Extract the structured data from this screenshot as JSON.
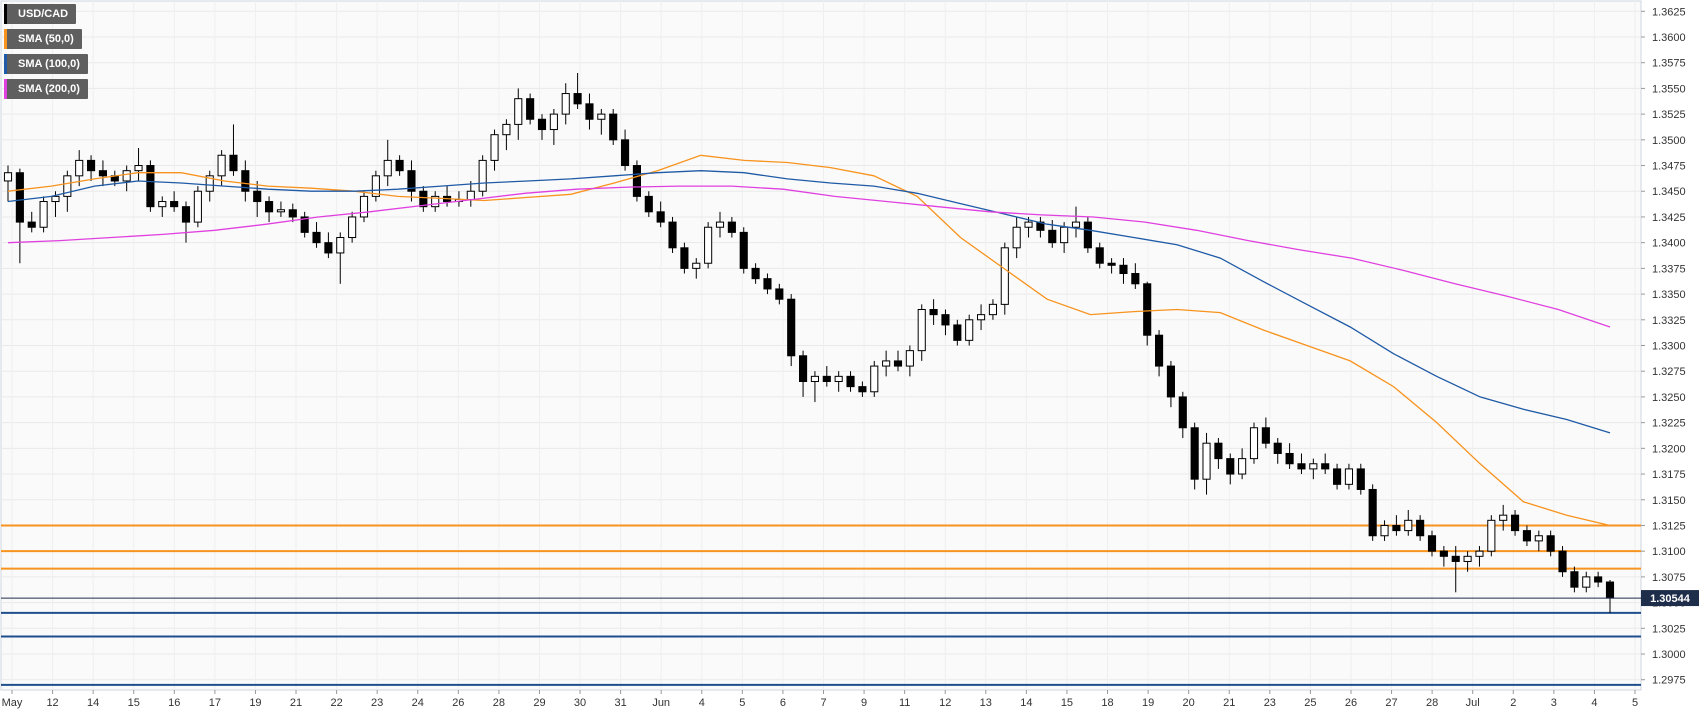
{
  "legend": [
    {
      "label": "USD/CAD",
      "color": "#000000"
    },
    {
      "label": "SMA (50,0)",
      "color": "#f7931e"
    },
    {
      "label": "SMA (100,0)",
      "color": "#1f5aa6"
    },
    {
      "label": "SMA (200,0)",
      "color": "#e040e0"
    }
  ],
  "chart_data": {
    "type": "candlestick",
    "symbol": "USD/CAD",
    "ylim": [
      1.2965,
      1.3635
    ],
    "y_ticks": [
      "1.2975",
      "1.3000",
      "1.3025",
      "1.3050",
      "1.3075",
      "1.3100",
      "1.3125",
      "1.3150",
      "1.3175",
      "1.3200",
      "1.3225",
      "1.3250",
      "1.3275",
      "1.3300",
      "1.3325",
      "1.3350",
      "1.3375",
      "1.3400",
      "1.3425",
      "1.3450",
      "1.3475",
      "1.3500",
      "1.3525",
      "1.3550",
      "1.3575",
      "1.3600",
      "1.3625"
    ],
    "x_ticks": [
      "May",
      "12",
      "14",
      "15",
      "16",
      "17",
      "19",
      "21",
      "22",
      "23",
      "24",
      "26",
      "28",
      "29",
      "30",
      "31",
      "Jun",
      "4",
      "5",
      "6",
      "7",
      "9",
      "11",
      "12",
      "13",
      "14",
      "15",
      "18",
      "19",
      "20",
      "21",
      "23",
      "25",
      "26",
      "27",
      "28",
      "Jul",
      "2",
      "3",
      "4",
      "5"
    ],
    "grid": true,
    "current_price": "1.30544",
    "current_price_value": 1.30544,
    "horizontal_levels": [
      {
        "value": 1.3125,
        "color": "#f7931e"
      },
      {
        "value": 1.31,
        "color": "#f7931e"
      },
      {
        "value": 1.3083,
        "color": "#f7931e"
      },
      {
        "value": 1.304,
        "color": "#1f4e8c"
      },
      {
        "value": 1.3017,
        "color": "#1f4e8c"
      },
      {
        "value": 1.297,
        "color": "#1f4e8c"
      }
    ],
    "series": [
      {
        "name": "SMA (50,0)",
        "color": "#f7931e",
        "values": [
          1.345,
          1.3455,
          1.3462,
          1.3468,
          1.3468,
          1.346,
          1.3455,
          1.3453,
          1.345,
          1.3445,
          1.3443,
          1.3441,
          1.3444,
          1.3447,
          1.3458,
          1.347,
          1.3485,
          1.348,
          1.3478,
          1.3473,
          1.3465,
          1.3445,
          1.3405,
          1.3375,
          1.3345,
          1.333,
          1.3333,
          1.3335,
          1.3332,
          1.3315,
          1.33,
          1.3285,
          1.326,
          1.3225,
          1.3185,
          1.3148,
          1.3135,
          1.3125
        ]
      },
      {
        "name": "SMA (100,0)",
        "color": "#1f5aa6",
        "values": [
          1.344,
          1.3445,
          1.3455,
          1.346,
          1.3458,
          1.3455,
          1.3452,
          1.345,
          1.345,
          1.3452,
          1.3455,
          1.3458,
          1.346,
          1.3462,
          1.3465,
          1.3468,
          1.347,
          1.3468,
          1.3462,
          1.3458,
          1.3455,
          1.3448,
          1.3438,
          1.3428,
          1.3418,
          1.3412,
          1.3405,
          1.3398,
          1.3385,
          1.3362,
          1.334,
          1.3318,
          1.3292,
          1.327,
          1.325,
          1.3238,
          1.3228,
          1.3215
        ]
      },
      {
        "name": "SMA (200,0)",
        "color": "#e040e0",
        "values": [
          1.34,
          1.3402,
          1.3405,
          1.3408,
          1.3412,
          1.3418,
          1.3425,
          1.343,
          1.3436,
          1.3442,
          1.3448,
          1.3452,
          1.3454,
          1.3455,
          1.3455,
          1.3452,
          1.3445,
          1.344,
          1.3435,
          1.343,
          1.3427,
          1.3425,
          1.342,
          1.3412,
          1.3402,
          1.3393,
          1.3385,
          1.3373,
          1.336,
          1.3348,
          1.3335,
          1.3318
        ]
      }
    ],
    "candles": [
      [
        1.346,
        1.3475,
        1.344,
        1.3468
      ],
      [
        1.3468,
        1.3472,
        1.338,
        1.342
      ],
      [
        1.342,
        1.343,
        1.341,
        1.3415
      ],
      [
        1.3415,
        1.3445,
        1.341,
        1.344
      ],
      [
        1.344,
        1.345,
        1.3425,
        1.3445
      ],
      [
        1.3445,
        1.347,
        1.343,
        1.3465
      ],
      [
        1.3465,
        1.349,
        1.3455,
        1.348
      ],
      [
        1.348,
        1.3485,
        1.346,
        1.347
      ],
      [
        1.347,
        1.348,
        1.3455,
        1.3465
      ],
      [
        1.3465,
        1.347,
        1.3455,
        1.346
      ],
      [
        1.346,
        1.3475,
        1.345,
        1.347
      ],
      [
        1.347,
        1.3492,
        1.346,
        1.3475
      ],
      [
        1.3475,
        1.348,
        1.343,
        1.3435
      ],
      [
        1.3435,
        1.3445,
        1.3425,
        1.344
      ],
      [
        1.344,
        1.345,
        1.343,
        1.3435
      ],
      [
        1.3435,
        1.344,
        1.34,
        1.342
      ],
      [
        1.342,
        1.3455,
        1.3415,
        1.345
      ],
      [
        1.345,
        1.347,
        1.344,
        1.3465
      ],
      [
        1.3465,
        1.349,
        1.3455,
        1.3485
      ],
      [
        1.3485,
        1.3515,
        1.3465,
        1.347
      ],
      [
        1.347,
        1.348,
        1.344,
        1.345
      ],
      [
        1.345,
        1.346,
        1.3425,
        1.344
      ],
      [
        1.344,
        1.3445,
        1.342,
        1.343
      ],
      [
        1.343,
        1.344,
        1.3425,
        1.3432
      ],
      [
        1.3432,
        1.3438,
        1.342,
        1.3425
      ],
      [
        1.3425,
        1.343,
        1.3405,
        1.341
      ],
      [
        1.341,
        1.342,
        1.3395,
        1.34
      ],
      [
        1.34,
        1.341,
        1.3385,
        1.339
      ],
      [
        1.339,
        1.341,
        1.336,
        1.3405
      ],
      [
        1.3405,
        1.343,
        1.34,
        1.3425
      ],
      [
        1.3425,
        1.345,
        1.342,
        1.3445
      ],
      [
        1.3445,
        1.347,
        1.344,
        1.3465
      ],
      [
        1.3465,
        1.35,
        1.3455,
        1.348
      ],
      [
        1.348,
        1.3485,
        1.3465,
        1.347
      ],
      [
        1.347,
        1.348,
        1.344,
        1.345
      ],
      [
        1.345,
        1.3455,
        1.343,
        1.3435
      ],
      [
        1.3435,
        1.345,
        1.343,
        1.3445
      ],
      [
        1.3445,
        1.3455,
        1.3435,
        1.344
      ],
      [
        1.344,
        1.345,
        1.3435,
        1.3442
      ],
      [
        1.3442,
        1.346,
        1.3435,
        1.345
      ],
      [
        1.345,
        1.3485,
        1.3445,
        1.348
      ],
      [
        1.348,
        1.351,
        1.347,
        1.3505
      ],
      [
        1.3505,
        1.352,
        1.349,
        1.3515
      ],
      [
        1.3515,
        1.355,
        1.35,
        1.354
      ],
      [
        1.354,
        1.3545,
        1.3515,
        1.352
      ],
      [
        1.352,
        1.3525,
        1.35,
        1.351
      ],
      [
        1.351,
        1.353,
        1.3495,
        1.3525
      ],
      [
        1.3525,
        1.3555,
        1.3515,
        1.3545
      ],
      [
        1.3545,
        1.3565,
        1.353,
        1.3535
      ],
      [
        1.3535,
        1.3545,
        1.351,
        1.352
      ],
      [
        1.352,
        1.353,
        1.3505,
        1.3525
      ],
      [
        1.3525,
        1.353,
        1.3495,
        1.35
      ],
      [
        1.35,
        1.351,
        1.347,
        1.3475
      ],
      [
        1.3475,
        1.348,
        1.344,
        1.3445
      ],
      [
        1.3445,
        1.345,
        1.3425,
        1.343
      ],
      [
        1.343,
        1.344,
        1.3415,
        1.342
      ],
      [
        1.342,
        1.3425,
        1.339,
        1.3395
      ],
      [
        1.3395,
        1.34,
        1.337,
        1.3375
      ],
      [
        1.3375,
        1.3385,
        1.3365,
        1.338
      ],
      [
        1.338,
        1.342,
        1.3375,
        1.3415
      ],
      [
        1.3415,
        1.343,
        1.3405,
        1.342
      ],
      [
        1.342,
        1.3425,
        1.3405,
        1.341
      ],
      [
        1.341,
        1.3415,
        1.337,
        1.3375
      ],
      [
        1.3375,
        1.338,
        1.336,
        1.3365
      ],
      [
        1.3365,
        1.337,
        1.335,
        1.3355
      ],
      [
        1.3355,
        1.336,
        1.334,
        1.3345
      ],
      [
        1.3345,
        1.335,
        1.328,
        1.329
      ],
      [
        1.329,
        1.3295,
        1.325,
        1.3265
      ],
      [
        1.3265,
        1.3275,
        1.3245,
        1.327
      ],
      [
        1.327,
        1.328,
        1.326,
        1.3265
      ],
      [
        1.3265,
        1.3275,
        1.3255,
        1.327
      ],
      [
        1.327,
        1.3275,
        1.3255,
        1.326
      ],
      [
        1.326,
        1.3265,
        1.325,
        1.3255
      ],
      [
        1.3255,
        1.3285,
        1.325,
        1.328
      ],
      [
        1.328,
        1.3295,
        1.327,
        1.3285
      ],
      [
        1.3285,
        1.3295,
        1.3275,
        1.328
      ],
      [
        1.328,
        1.33,
        1.327,
        1.3295
      ],
      [
        1.3295,
        1.334,
        1.3285,
        1.3335
      ],
      [
        1.3335,
        1.3345,
        1.332,
        1.333
      ],
      [
        1.333,
        1.3335,
        1.331,
        1.332
      ],
      [
        1.332,
        1.3325,
        1.33,
        1.3305
      ],
      [
        1.3305,
        1.333,
        1.33,
        1.3325
      ],
      [
        1.3325,
        1.334,
        1.3315,
        1.333
      ],
      [
        1.333,
        1.3345,
        1.3325,
        1.334
      ],
      [
        1.334,
        1.34,
        1.333,
        1.3395
      ],
      [
        1.3395,
        1.3425,
        1.3385,
        1.3415
      ],
      [
        1.3415,
        1.3425,
        1.3405,
        1.342
      ],
      [
        1.342,
        1.3425,
        1.3405,
        1.3412
      ],
      [
        1.3412,
        1.3422,
        1.3395,
        1.34
      ],
      [
        1.34,
        1.342,
        1.339,
        1.3415
      ],
      [
        1.3415,
        1.3435,
        1.3405,
        1.342
      ],
      [
        1.342,
        1.3425,
        1.339,
        1.3395
      ],
      [
        1.3395,
        1.34,
        1.3375,
        1.338
      ],
      [
        1.338,
        1.3385,
        1.337,
        1.3378
      ],
      [
        1.3378,
        1.3385,
        1.336,
        1.337
      ],
      [
        1.337,
        1.338,
        1.3355,
        1.336
      ],
      [
        1.336,
        1.3362,
        1.33,
        1.331
      ],
      [
        1.331,
        1.3315,
        1.327,
        1.328
      ],
      [
        1.328,
        1.3285,
        1.324,
        1.325
      ],
      [
        1.325,
        1.3255,
        1.321,
        1.322
      ],
      [
        1.322,
        1.3225,
        1.316,
        1.317
      ],
      [
        1.317,
        1.3215,
        1.3155,
        1.3205
      ],
      [
        1.3205,
        1.321,
        1.318,
        1.319
      ],
      [
        1.319,
        1.3195,
        1.3165,
        1.3175
      ],
      [
        1.3175,
        1.32,
        1.317,
        1.319
      ],
      [
        1.319,
        1.3225,
        1.3185,
        1.322
      ],
      [
        1.322,
        1.323,
        1.32,
        1.3205
      ],
      [
        1.3205,
        1.321,
        1.3185,
        1.3195
      ],
      [
        1.3195,
        1.3205,
        1.318,
        1.3185
      ],
      [
        1.3185,
        1.3195,
        1.3175,
        1.318
      ],
      [
        1.318,
        1.319,
        1.317,
        1.3185
      ],
      [
        1.3185,
        1.3195,
        1.3175,
        1.318
      ],
      [
        1.318,
        1.3185,
        1.316,
        1.3165
      ],
      [
        1.3165,
        1.3185,
        1.316,
        1.318
      ],
      [
        1.318,
        1.3185,
        1.3155,
        1.316
      ],
      [
        1.316,
        1.3165,
        1.311,
        1.3115
      ],
      [
        1.3115,
        1.313,
        1.311,
        1.3125
      ],
      [
        1.3125,
        1.3135,
        1.3115,
        1.312
      ],
      [
        1.312,
        1.314,
        1.3115,
        1.313
      ],
      [
        1.313,
        1.3135,
        1.311,
        1.3115
      ],
      [
        1.3115,
        1.312,
        1.3095,
        1.31
      ],
      [
        1.31,
        1.3105,
        1.3085,
        1.3095
      ],
      [
        1.3095,
        1.3105,
        1.306,
        1.309
      ],
      [
        1.309,
        1.31,
        1.308,
        1.3095
      ],
      [
        1.3095,
        1.3105,
        1.3085,
        1.31
      ],
      [
        1.31,
        1.3135,
        1.3095,
        1.313
      ],
      [
        1.313,
        1.3145,
        1.312,
        1.3135
      ],
      [
        1.3135,
        1.314,
        1.3115,
        1.312
      ],
      [
        1.312,
        1.3125,
        1.3105,
        1.311
      ],
      [
        1.311,
        1.312,
        1.31,
        1.3115
      ],
      [
        1.3115,
        1.312,
        1.3095,
        1.31
      ],
      [
        1.31,
        1.3105,
        1.3075,
        1.308
      ],
      [
        1.308,
        1.3085,
        1.306,
        1.3065
      ],
      [
        1.3065,
        1.308,
        1.306,
        1.3075
      ],
      [
        1.3075,
        1.308,
        1.3065,
        1.307
      ],
      [
        1.307,
        1.3072,
        1.304,
        1.30544
      ]
    ]
  }
}
